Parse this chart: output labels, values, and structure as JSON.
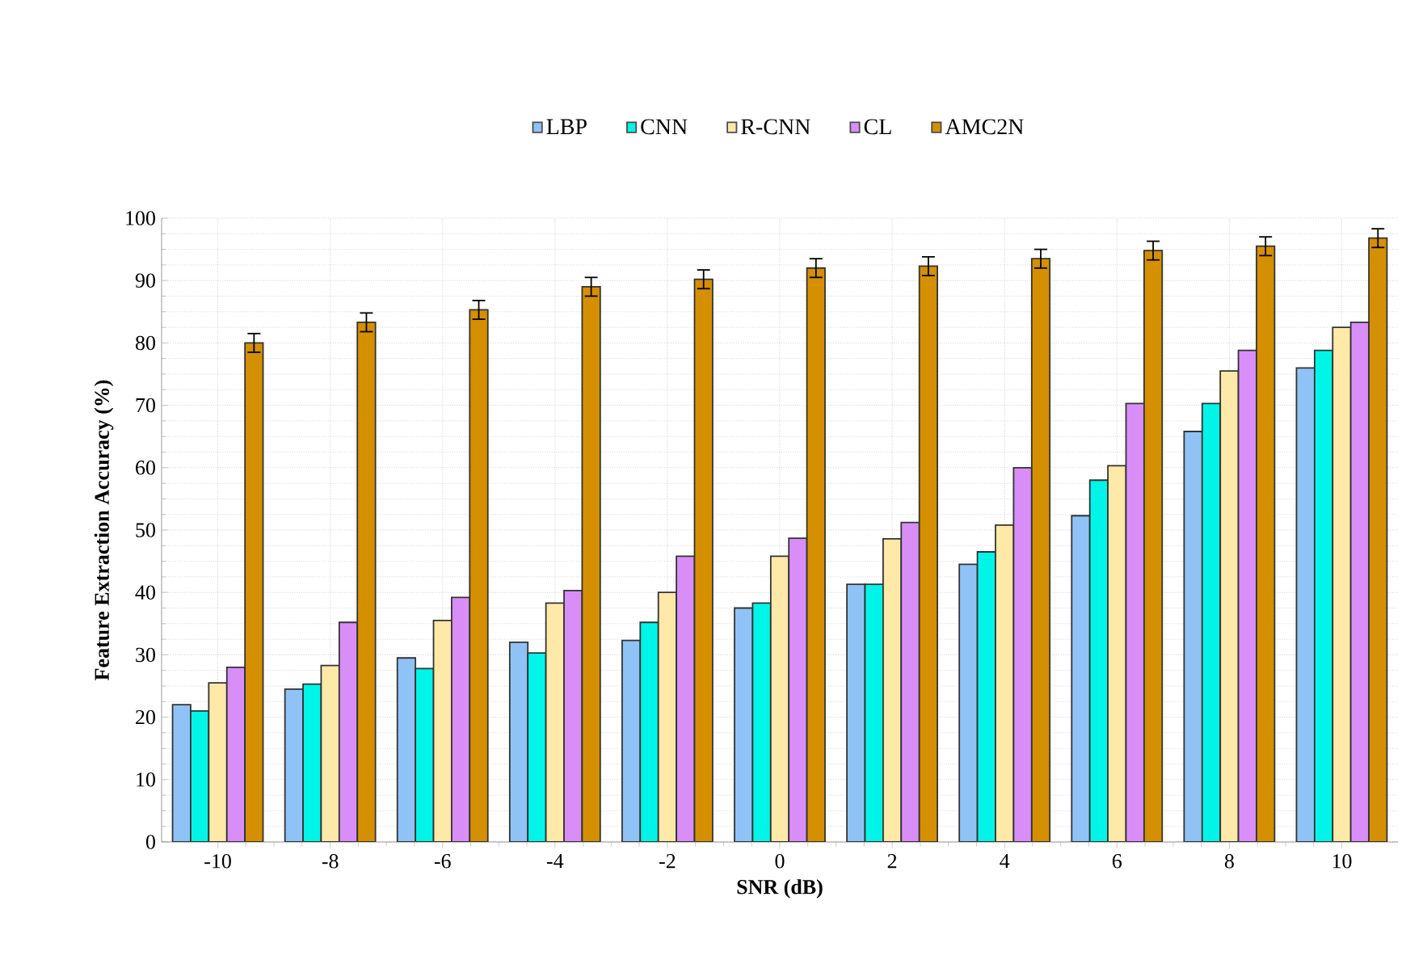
{
  "chart_data": {
    "type": "bar",
    "xlabel": "SNR (dB)",
    "ylabel": "Feature Extraction Accuracy (%)",
    "categories": [
      "-10",
      "-8",
      "-6",
      "-4",
      "-2",
      "0",
      "2",
      "4",
      "6",
      "8",
      "10"
    ],
    "series": [
      {
        "name": "LBP",
        "color": "#8fc3f5",
        "values": [
          22,
          24.5,
          29.5,
          32,
          32.3,
          37.5,
          41.3,
          44.5,
          52.3,
          65.8,
          76
        ]
      },
      {
        "name": "CNN",
        "color": "#00f5e8",
        "values": [
          21,
          25.3,
          27.8,
          30.3,
          35.2,
          38.3,
          41.3,
          46.5,
          58,
          70.3,
          78.8
        ]
      },
      {
        "name": "R-CNN",
        "color": "#ffe9a8",
        "values": [
          25.5,
          28.3,
          35.5,
          38.3,
          40,
          45.8,
          48.6,
          50.8,
          60.3,
          75.5,
          82.5
        ]
      },
      {
        "name": "CL",
        "color": "#d98ef7",
        "values": [
          28,
          35.2,
          39.2,
          40.3,
          45.8,
          48.7,
          51.2,
          60,
          70.3,
          78.8,
          83.3
        ]
      },
      {
        "name": "AMC2N",
        "color": "#d49000",
        "values": [
          80,
          83.3,
          85.3,
          89,
          90.2,
          92,
          92.3,
          93.5,
          94.8,
          95.5,
          96.8
        ],
        "errors": [
          1.5,
          1.5,
          1.5,
          1.5,
          1.5,
          1.5,
          1.5,
          1.5,
          1.5,
          1.5,
          1.5
        ]
      }
    ],
    "ylim": [
      0,
      100
    ],
    "yticks": [
      0,
      10,
      20,
      30,
      40,
      50,
      60,
      70,
      80,
      90,
      100
    ],
    "grid": true,
    "legend": "top"
  }
}
